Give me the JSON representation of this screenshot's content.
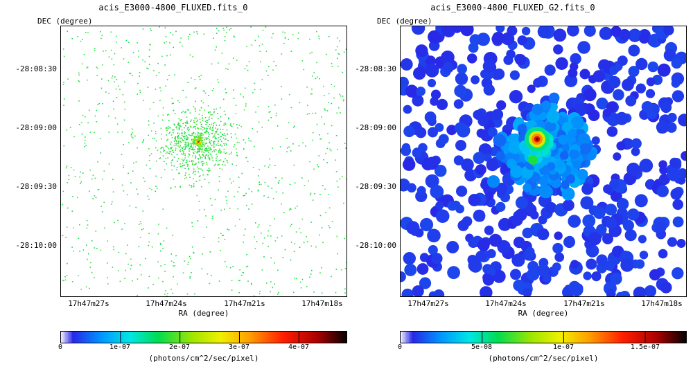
{
  "chart_data": [
    {
      "type": "heatmap",
      "title": "acis_E3000-4800_FLUXED.fits_0",
      "xlabel": "RA (degree)",
      "ylabel": "DEC (degree)",
      "x_ticks": [
        "17h47m27s",
        "17h47m24s",
        "17h47m21s",
        "17h47m18s"
      ],
      "y_ticks": [
        "-28:08:30",
        "-28:09:00",
        "-28:09:30",
        "-28:10:00"
      ],
      "colorbar": {
        "label": "(photons/cm^2/sec/pixel)",
        "ticks": [
          "0",
          "1e-07",
          "2e-07",
          "3e-07",
          "4e-07"
        ],
        "min": 0,
        "max": 4.8e-07
      },
      "source": {
        "ra": "17h47m23.3s",
        "dec": "-28:09:05",
        "peak": 4.5e-07
      }
    },
    {
      "type": "heatmap",
      "title": "acis_E3000-4800_FLUXED_G2.fits_0",
      "xlabel": "RA (degree)",
      "ylabel": "DEC (degree)",
      "x_ticks": [
        "17h47m27s",
        "17h47m24s",
        "17h47m21s",
        "17h47m18s"
      ],
      "y_ticks": [
        "-28:08:30",
        "-28:09:00",
        "-28:09:30",
        "-28:10:00"
      ],
      "colorbar": {
        "label": "(photons/cm^2/sec/pixel)",
        "ticks": [
          "0",
          "5e-08",
          "1e-07",
          "1.5e-07"
        ],
        "min": 0,
        "max": 1.75e-07
      },
      "source": {
        "ra": "17h47m23.3s",
        "dec": "-28:09:05",
        "peak": 1.6e-07
      }
    }
  ]
}
